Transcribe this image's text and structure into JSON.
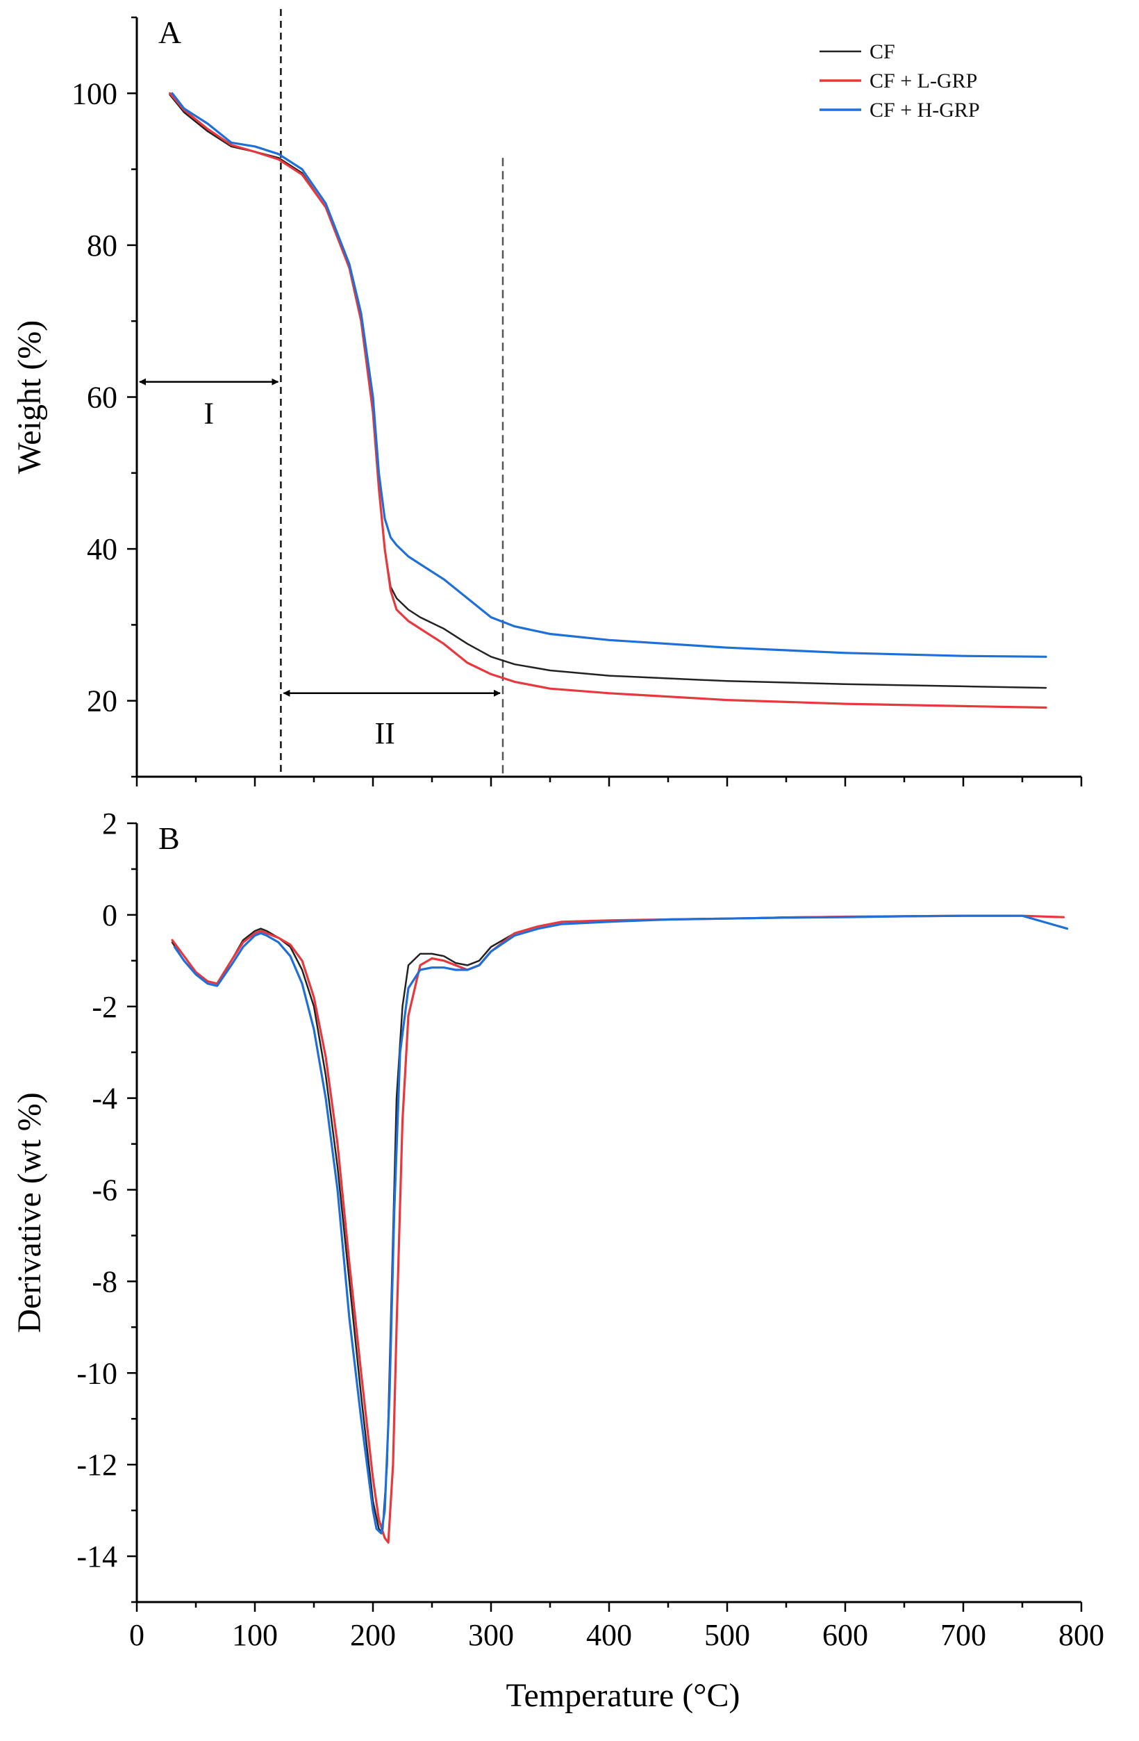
{
  "chart_data": [
    {
      "panel": "A",
      "type": "line",
      "title": "",
      "xlabel": "",
      "ylabel": "Weight (%)",
      "xlim": [
        0,
        800
      ],
      "ylim": [
        10,
        110
      ],
      "x_ticks": [
        0,
        100,
        200,
        300,
        400,
        500,
        600,
        700,
        800
      ],
      "y_ticks": [
        20,
        40,
        60,
        80,
        100
      ],
      "y_tick_labels": [
        "20",
        "40",
        "60",
        "80",
        "100"
      ],
      "legend": {
        "position": "top-right",
        "entries": [
          "CF",
          "CF + L-GRP",
          "CF + H-GRP"
        ]
      },
      "series": [
        {
          "name": "CF",
          "color": "#222222",
          "x": [
            28,
            40,
            60,
            80,
            100,
            120,
            140,
            160,
            180,
            190,
            200,
            205,
            210,
            215,
            220,
            230,
            240,
            260,
            280,
            300,
            320,
            350,
            400,
            500,
            600,
            700,
            770
          ],
          "y": [
            99.8,
            97.5,
            95,
            93,
            92.3,
            91.5,
            89.5,
            85,
            77,
            70,
            58,
            48,
            40,
            35,
            33.5,
            32,
            31,
            29.5,
            27.5,
            25.8,
            24.8,
            24,
            23.3,
            22.6,
            22.2,
            21.9,
            21.7
          ]
        },
        {
          "name": "CF + L-GRP",
          "color": "#e8383d",
          "x": [
            28,
            40,
            60,
            80,
            100,
            120,
            140,
            160,
            180,
            190,
            200,
            205,
            210,
            215,
            220,
            230,
            240,
            260,
            280,
            300,
            320,
            350,
            400,
            500,
            600,
            700,
            770
          ],
          "y": [
            100,
            97.8,
            95.3,
            93.2,
            92.3,
            91.3,
            89.3,
            85,
            77,
            70,
            58,
            48,
            40,
            34.5,
            32,
            30.5,
            29.5,
            27.5,
            25,
            23.5,
            22.5,
            21.6,
            21,
            20.1,
            19.6,
            19.3,
            19.1
          ]
        },
        {
          "name": "CF + H-GRP",
          "color": "#1f6fd8",
          "x": [
            30,
            40,
            60,
            80,
            100,
            120,
            140,
            160,
            180,
            190,
            200,
            205,
            210,
            215,
            220,
            230,
            240,
            260,
            280,
            300,
            320,
            350,
            400,
            500,
            600,
            700,
            770
          ],
          "y": [
            100,
            98,
            96,
            93.5,
            93,
            92,
            90,
            85.5,
            77.5,
            71,
            60,
            50,
            44,
            41.5,
            40.5,
            39,
            38,
            36,
            33.5,
            31,
            29.8,
            28.8,
            28,
            27,
            26.3,
            25.9,
            25.8
          ]
        }
      ],
      "annotations": {
        "boundaries_temperature": [
          122,
          310
        ],
        "regions": [
          {
            "label": "I",
            "from": 0,
            "to": 122,
            "arrow_y": 62
          },
          {
            "label": "II",
            "from": 122,
            "to": 310,
            "arrow_y": 21
          }
        ]
      }
    },
    {
      "panel": "B",
      "type": "line",
      "title": "",
      "xlabel": "Temperature (°C)",
      "ylabel": "Derivative (wt %)",
      "xlim": [
        0,
        800
      ],
      "ylim": [
        -15,
        2
      ],
      "x_ticks": [
        0,
        100,
        200,
        300,
        400,
        500,
        600,
        700,
        800
      ],
      "x_tick_labels": [
        "0",
        "100",
        "200",
        "300",
        "400",
        "500",
        "600",
        "700",
        "800"
      ],
      "y_ticks": [
        2,
        0,
        -2,
        -4,
        -6,
        -8,
        -10,
        -12,
        -14
      ],
      "y_tick_labels": [
        "2",
        "0",
        "-2",
        "-4",
        "-6",
        "-8",
        "-10",
        "-12",
        "-14"
      ],
      "series": [
        {
          "name": "CF",
          "color": "#222222",
          "x": [
            30,
            40,
            50,
            60,
            68,
            80,
            90,
            100,
            105,
            110,
            120,
            130,
            140,
            150,
            160,
            170,
            180,
            190,
            200,
            205,
            208,
            212,
            216,
            220,
            225,
            230,
            240,
            250,
            260,
            270,
            280,
            290,
            300,
            320,
            340,
            360,
            400,
            450,
            500,
            550,
            600,
            650,
            700,
            750,
            785
          ],
          "y": [
            -0.6,
            -1.0,
            -1.3,
            -1.5,
            -1.55,
            -1.0,
            -0.55,
            -0.35,
            -0.3,
            -0.35,
            -0.5,
            -0.7,
            -1.2,
            -2.0,
            -3.5,
            -5.5,
            -8.0,
            -10.5,
            -12.8,
            -13.4,
            -13.5,
            -12.0,
            -8.0,
            -4.0,
            -2.0,
            -1.1,
            -0.85,
            -0.85,
            -0.9,
            -1.05,
            -1.1,
            -1.0,
            -0.7,
            -0.4,
            -0.25,
            -0.15,
            -0.12,
            -0.1,
            -0.08,
            -0.05,
            -0.04,
            -0.03,
            -0.02,
            -0.02,
            -0.05
          ]
        },
        {
          "name": "CF + L-GRP",
          "color": "#e8383d",
          "x": [
            30,
            40,
            50,
            60,
            68,
            80,
            90,
            100,
            105,
            110,
            120,
            130,
            140,
            150,
            160,
            170,
            180,
            190,
            200,
            205,
            210,
            213,
            217,
            220,
            225,
            230,
            240,
            250,
            260,
            270,
            280,
            290,
            300,
            320,
            340,
            360,
            400,
            450,
            500,
            550,
            600,
            650,
            700,
            750,
            785
          ],
          "y": [
            -0.55,
            -0.9,
            -1.25,
            -1.45,
            -1.5,
            -1.0,
            -0.6,
            -0.4,
            -0.35,
            -0.4,
            -0.5,
            -0.65,
            -1.0,
            -1.8,
            -3.1,
            -5.0,
            -7.6,
            -10.0,
            -12.3,
            -13.2,
            -13.6,
            -13.7,
            -12.0,
            -9.0,
            -4.5,
            -2.2,
            -1.1,
            -0.95,
            -1.0,
            -1.1,
            -1.2,
            -1.1,
            -0.8,
            -0.4,
            -0.25,
            -0.15,
            -0.12,
            -0.1,
            -0.08,
            -0.06,
            -0.04,
            -0.03,
            -0.02,
            -0.02,
            -0.05
          ]
        },
        {
          "name": "CF + H-GRP",
          "color": "#1f6fd8",
          "x": [
            32,
            40,
            50,
            60,
            68,
            80,
            90,
            100,
            105,
            110,
            120,
            130,
            140,
            150,
            160,
            170,
            180,
            190,
            200,
            203,
            207,
            210,
            214,
            218,
            223,
            230,
            240,
            250,
            260,
            270,
            280,
            290,
            300,
            320,
            340,
            360,
            400,
            450,
            500,
            550,
            600,
            650,
            700,
            750,
            788
          ],
          "y": [
            -0.7,
            -1.0,
            -1.3,
            -1.5,
            -1.55,
            -1.1,
            -0.7,
            -0.45,
            -0.4,
            -0.45,
            -0.6,
            -0.9,
            -1.5,
            -2.5,
            -4.0,
            -6.0,
            -8.8,
            -11.0,
            -13.0,
            -13.4,
            -13.5,
            -13.0,
            -10.5,
            -6.5,
            -3.0,
            -1.6,
            -1.2,
            -1.15,
            -1.15,
            -1.2,
            -1.2,
            -1.1,
            -0.8,
            -0.45,
            -0.3,
            -0.2,
            -0.15,
            -0.1,
            -0.08,
            -0.06,
            -0.05,
            -0.03,
            -0.02,
            -0.02,
            -0.3
          ]
        }
      ]
    }
  ]
}
